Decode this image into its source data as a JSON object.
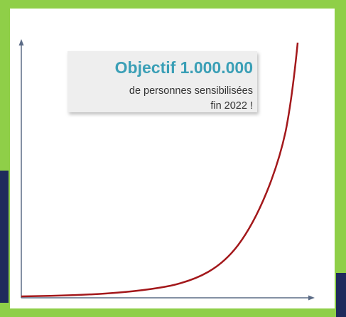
{
  "callout": {
    "title": "Objectif 1.000.000",
    "line1": "de personnes sensibilisées",
    "line2": "fin 2022 !"
  }
}
